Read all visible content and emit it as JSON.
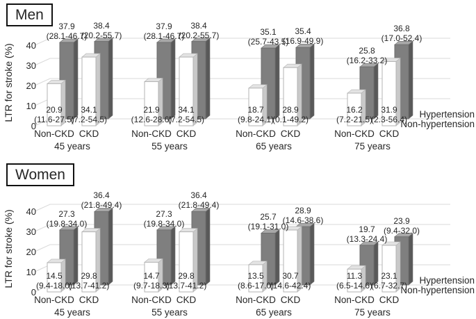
{
  "figure": {
    "panels": [
      "Men",
      "Women"
    ]
  },
  "colors": {
    "hypertension_bar": "#7f7f7f",
    "hypertension_bar_top": "#a8a8a8",
    "hypertension_bar_side": "#595959",
    "non_hypertension_bar": "#ffffff",
    "non_hypertension_bar_top": "#e3e3e3",
    "non_hypertension_bar_side": "#c9c9c9",
    "gridline": "#d9d9d9",
    "text": "#262626"
  },
  "chart_data": [
    {
      "type": "bar",
      "title": "Men",
      "ylabel": "LTR for stroke (%)",
      "ylim": [
        0,
        45
      ],
      "yticks": [
        0,
        10,
        20,
        30,
        40
      ],
      "grid": true,
      "legend_position": "right",
      "legend_rows": [
        "Hypertension",
        "Non-hypertension"
      ],
      "age_groups": [
        {
          "label": "45 years",
          "bars": [
            {
              "category": "Non-CKD",
              "non_hypertension": {
                "value": 20.9,
                "ci": "(11.6-27.5)"
              },
              "hypertension": {
                "value": 37.9,
                "ci": "(28.1-46.7)"
              }
            },
            {
              "category": "CKD",
              "non_hypertension": {
                "value": 34.1,
                "ci": "(7.2-54.5)"
              },
              "hypertension": {
                "value": 38.4,
                "ci": "(20.2-55.7)"
              }
            }
          ]
        },
        {
          "label": "55 years",
          "bars": [
            {
              "category": "Non-CKD",
              "non_hypertension": {
                "value": 21.9,
                "ci": "(12.6-28.6)"
              },
              "hypertension": {
                "value": 37.9,
                "ci": "(28.1-46.7)"
              }
            },
            {
              "category": "CKD",
              "non_hypertension": {
                "value": 34.1,
                "ci": "(7.2-54.5)"
              },
              "hypertension": {
                "value": 38.4,
                "ci": "(20.2-55.7)"
              }
            }
          ]
        },
        {
          "label": "65 years",
          "bars": [
            {
              "category": "Non-CKD",
              "non_hypertension": {
                "value": 18.7,
                "ci": "(9.8-24.1)"
              },
              "hypertension": {
                "value": 35.1,
                "ci": "(25.7-43.5)"
              }
            },
            {
              "category": "CKD",
              "non_hypertension": {
                "value": 28.9,
                "ci": "(0.1-49.2)"
              },
              "hypertension": {
                "value": 35.4,
                "ci": "(16.9-49.9)"
              }
            }
          ]
        },
        {
          "label": "75 years",
          "bars": [
            {
              "category": "Non-CKD",
              "non_hypertension": {
                "value": 16.2,
                "ci": "(7.2-21.5)"
              },
              "hypertension": {
                "value": 25.8,
                "ci": "(16.2-33.2)"
              }
            },
            {
              "category": "CKD",
              "non_hypertension": {
                "value": 31.9,
                "ci": "(2.3-56.4)"
              },
              "hypertension": {
                "value": 36.8,
                "ci": "(17.0-52.4)"
              }
            }
          ]
        }
      ]
    },
    {
      "type": "bar",
      "title": "Women",
      "ylabel": "LTR for stroke (%)",
      "ylim": [
        0,
        45
      ],
      "yticks": [
        0,
        10,
        20,
        30,
        40
      ],
      "grid": true,
      "legend_position": "right",
      "legend_rows": [
        "Hypertension",
        "Non-hypertension"
      ],
      "age_groups": [
        {
          "label": "45 years",
          "bars": [
            {
              "category": "Non-CKD",
              "non_hypertension": {
                "value": 14.5,
                "ci": "(9.4-18.0)"
              },
              "hypertension": {
                "value": 27.3,
                "ci": "(19.8-34.0)"
              }
            },
            {
              "category": "CKD",
              "non_hypertension": {
                "value": 29.8,
                "ci": "(13.7-41.2)"
              },
              "hypertension": {
                "value": 36.4,
                "ci": "(21.8-49.4)"
              }
            }
          ]
        },
        {
          "label": "55 years",
          "bars": [
            {
              "category": "Non-CKD",
              "non_hypertension": {
                "value": 14.7,
                "ci": "(9.7-18.3)"
              },
              "hypertension": {
                "value": 27.3,
                "ci": "(19.8-34.0)"
              }
            },
            {
              "category": "CKD",
              "non_hypertension": {
                "value": 29.8,
                "ci": "(13.7-41.2)"
              },
              "hypertension": {
                "value": 36.4,
                "ci": "(21.8-49.4)"
              }
            }
          ]
        },
        {
          "label": "65 years",
          "bars": [
            {
              "category": "Non-CKD",
              "non_hypertension": {
                "value": 13.5,
                "ci": "(8.6-17.0)"
              },
              "hypertension": {
                "value": 25.7,
                "ci": "(19.1-31.0)"
              }
            },
            {
              "category": "CKD",
              "non_hypertension": {
                "value": 30.7,
                "ci": "(14.6-42.4)"
              },
              "hypertension": {
                "value": 28.9,
                "ci": "(14.6-38.6)"
              }
            }
          ]
        },
        {
          "label": "75 years",
          "bars": [
            {
              "category": "Non-CKD",
              "non_hypertension": {
                "value": 11.3,
                "ci": "(6.5-14.6)"
              },
              "hypertension": {
                "value": 19.7,
                "ci": "(13.3-24.4)"
              }
            },
            {
              "category": "CKD",
              "non_hypertension": {
                "value": 23.1,
                "ci": "(6.7-32.7)"
              },
              "hypertension": {
                "value": 23.9,
                "ci": "(9.4-32.0)"
              }
            }
          ]
        }
      ]
    }
  ]
}
